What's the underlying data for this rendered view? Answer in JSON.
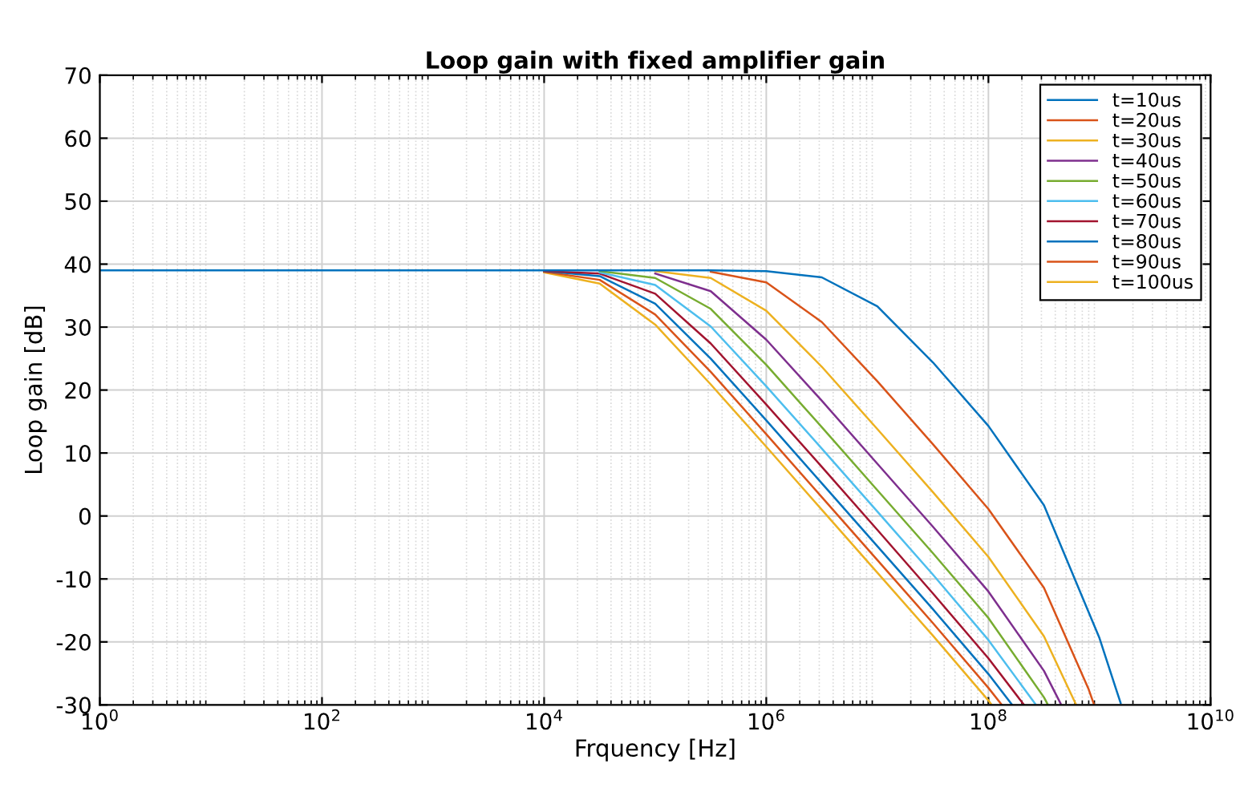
{
  "chart_data": {
    "type": "line",
    "title": "Loop gain with fixed amplifier gain",
    "xlabel": "Frquency [Hz]",
    "ylabel": "Loop gain [dB]",
    "log": "x",
    "grid": true,
    "legend": "top right",
    "marker": "none",
    "line_style": "solid",
    "xlim": [
      1,
      10000000000
    ],
    "ylim": [
      -30,
      70
    ],
    "xticks": [
      {
        "value": 1,
        "label": "10$^{0}$"
      },
      {
        "value": 100,
        "label": "10$^{2}$"
      },
      {
        "value": 10000,
        "label": "10$^{4}$"
      },
      {
        "value": 1000000,
        "label": "10$^{6}$"
      },
      {
        "value": 100000000,
        "label": "10$^{8}$"
      },
      {
        "value": 10000000000,
        "label": "10$^{10}$"
      }
    ],
    "yticks": [
      -30,
      -20,
      -10,
      0,
      10,
      20,
      30,
      40,
      50,
      60,
      70
    ],
    "series": [
      {
        "name": "t=10us",
        "color": "#0072bd",
        "x": [
          1,
          100,
          1000,
          3162,
          10000,
          31623,
          100000,
          316228,
          1000000,
          3162278,
          10000000,
          31622777,
          100000000,
          316227766,
          1000000000,
          1410000000,
          1550000000
        ],
        "values": [
          39,
          39,
          39,
          39,
          39,
          39,
          39,
          39,
          38.9,
          37.9,
          33.3,
          24.4,
          14.3,
          1.7,
          -19.4,
          -27.5,
          -29.7
        ]
      },
      {
        "name": "t=20us",
        "color": "#d95319",
        "x": [
          316228,
          1000000,
          3162278,
          10000000,
          31622777,
          100000000,
          316227766,
          794000000,
          891000000
        ],
        "values": [
          38.8,
          37.1,
          30.8,
          21.4,
          11.4,
          1.1,
          -11.4,
          -27.4,
          -29.9
        ]
      },
      {
        "name": "t=30us",
        "color": "#edb120",
        "x": [
          100000,
          316228,
          1000000,
          3162278,
          10000000,
          31622777,
          100000000,
          316227766,
          617000000
        ],
        "values": [
          38.9,
          37.8,
          32.6,
          23.7,
          13.8,
          3.8,
          -6.5,
          -19.1,
          -30.0
        ]
      },
      {
        "name": "t=40us",
        "color": "#7e2f8e",
        "x": [
          100000,
          316228,
          1000000,
          3162278,
          10000000,
          31622777,
          100000000,
          316227766,
          447000000
        ],
        "values": [
          38.5,
          35.7,
          28.0,
          18.3,
          8.3,
          -1.7,
          -12.0,
          -24.6,
          -29.8
        ]
      },
      {
        "name": "t=50us",
        "color": "#77ac30",
        "x": [
          31623,
          100000,
          316228,
          1000000,
          3162278,
          10000000,
          31622777,
          100000000,
          316227766,
          339000000
        ],
        "values": [
          38.9,
          37.8,
          32.9,
          24.0,
          14.1,
          4.1,
          -5.9,
          -16.2,
          -28.8,
          -29.8
        ]
      },
      {
        "name": "t=60us",
        "color": "#4dbeee",
        "x": [
          31623,
          100000,
          316228,
          1000000,
          3162278,
          10000000,
          31622777,
          100000000,
          263000000
        ],
        "values": [
          38.7,
          36.7,
          30.1,
          20.6,
          10.7,
          0.7,
          -9.3,
          -19.7,
          -29.8
        ]
      },
      {
        "name": "t=70us",
        "color": "#a2142f",
        "x": [
          10000,
          31623,
          100000,
          316228,
          1000000,
          3162278,
          10000000,
          31622777,
          100000000,
          209000000
        ],
        "values": [
          38.9,
          38.5,
          35.3,
          27.4,
          17.7,
          7.8,
          -2.2,
          -12.3,
          -22.6,
          -30.0
        ]
      },
      {
        "name": "t=80us",
        "color": "#0072bd",
        "x": [
          10000,
          31623,
          100000,
          316228,
          1000000,
          3162278,
          10000000,
          31622777,
          100000000,
          162000000
        ],
        "values": [
          38.9,
          38.1,
          33.7,
          25.0,
          15.2,
          5.2,
          -4.8,
          -14.8,
          -25.1,
          -29.9
        ]
      },
      {
        "name": "t=90us",
        "color": "#d95319",
        "x": [
          10000,
          31623,
          100000,
          316228,
          1000000,
          3162278,
          10000000,
          31622777,
          100000000,
          132000000
        ],
        "values": [
          38.8,
          37.5,
          32.0,
          22.9,
          13.0,
          3.0,
          -7.0,
          -17.0,
          -27.3,
          -30.0
        ]
      },
      {
        "name": "t=100us",
        "color": "#edb120",
        "x": [
          10000,
          31623,
          100000,
          316228,
          1000000,
          3162278,
          10000000,
          31622777,
          100000000,
          105000000
        ],
        "values": [
          38.7,
          36.9,
          30.4,
          20.9,
          11.0,
          1.0,
          -9.0,
          -19.0,
          -29.3,
          -29.8
        ]
      }
    ]
  }
}
